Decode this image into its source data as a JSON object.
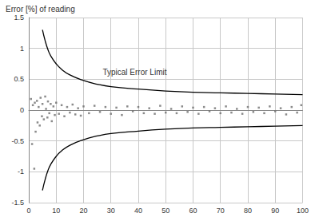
{
  "chart_data": {
    "type": "scatter",
    "y_label": "Error [%] of reading",
    "annotations": [
      {
        "text": "Typical Error Limit",
        "x": 27,
        "y": 0.62
      }
    ],
    "xlim": [
      0,
      100
    ],
    "xticks": [
      0,
      10,
      20,
      30,
      40,
      50,
      60,
      70,
      80,
      90,
      100
    ],
    "ylim": [
      -1.5,
      1.5
    ],
    "yticks": [
      -1.5,
      -1,
      -0.5,
      0,
      0.5,
      1,
      1.5
    ],
    "grid": true,
    "series": [
      {
        "type": "scatter",
        "color": "#6e6e6e",
        "marker": "square",
        "x": [
          0.8,
          1.2,
          1.5,
          2,
          2.2,
          2.5,
          3,
          3.2,
          3.6,
          4,
          4.3,
          4.8,
          5,
          5.5,
          6,
          6.3,
          6.8,
          7,
          7.5,
          8,
          8.4,
          9,
          9.5,
          10,
          11,
          12,
          13,
          14,
          15,
          16,
          17,
          18,
          19,
          20,
          22,
          24,
          26,
          28,
          30,
          32,
          34,
          36,
          38,
          40,
          42,
          44,
          46,
          48,
          50,
          52,
          54,
          56,
          58,
          60,
          62,
          64,
          66,
          68,
          70,
          72,
          74,
          76,
          78,
          80,
          82,
          84,
          86,
          88,
          90,
          92,
          94,
          96,
          98,
          99.5
        ],
        "values": [
          0.18,
          -0.55,
          0.08,
          -0.95,
          0.12,
          -0.35,
          0.15,
          -0.2,
          0.05,
          -0.25,
          0.2,
          -0.1,
          0.1,
          -0.15,
          0.22,
          0.02,
          -0.12,
          0.14,
          -0.05,
          0.1,
          -0.18,
          0.06,
          -0.08,
          0.12,
          -0.06,
          0.08,
          -0.1,
          0.05,
          -0.04,
          0.09,
          -0.07,
          0.03,
          -0.09,
          0.06,
          -0.05,
          0.07,
          -0.03,
          0.05,
          -0.06,
          0.04,
          -0.08,
          0.06,
          -0.02,
          0.05,
          -0.05,
          0.03,
          -0.06,
          0.07,
          -0.04,
          0.02,
          -0.05,
          0.06,
          -0.03,
          0.04,
          -0.06,
          0.05,
          -0.02,
          0.03,
          -0.05,
          0.06,
          -0.04,
          0.02,
          -0.06,
          0.05,
          -0.03,
          0.04,
          -0.05,
          0.06,
          -0.02,
          0.03,
          -0.07,
          0.05,
          -0.04,
          0.08
        ]
      },
      {
        "type": "line",
        "color": "#000000",
        "line_style": "solid",
        "x": [
          5,
          6,
          7,
          8,
          10,
          12,
          15,
          20,
          25,
          30,
          40,
          50,
          60,
          70,
          80,
          90,
          100
        ],
        "values": [
          1.3,
          1.12,
          0.98,
          0.88,
          0.75,
          0.66,
          0.57,
          0.48,
          0.42,
          0.38,
          0.34,
          0.31,
          0.29,
          0.28,
          0.27,
          0.26,
          0.25
        ]
      },
      {
        "type": "line",
        "color": "#000000",
        "line_style": "solid",
        "x": [
          5,
          6,
          7,
          8,
          10,
          12,
          15,
          20,
          25,
          30,
          40,
          50,
          60,
          70,
          80,
          90,
          100
        ],
        "values": [
          -1.3,
          -1.12,
          -0.98,
          -0.88,
          -0.75,
          -0.66,
          -0.57,
          -0.48,
          -0.42,
          -0.38,
          -0.34,
          -0.31,
          -0.29,
          -0.28,
          -0.27,
          -0.26,
          -0.25
        ]
      }
    ]
  }
}
